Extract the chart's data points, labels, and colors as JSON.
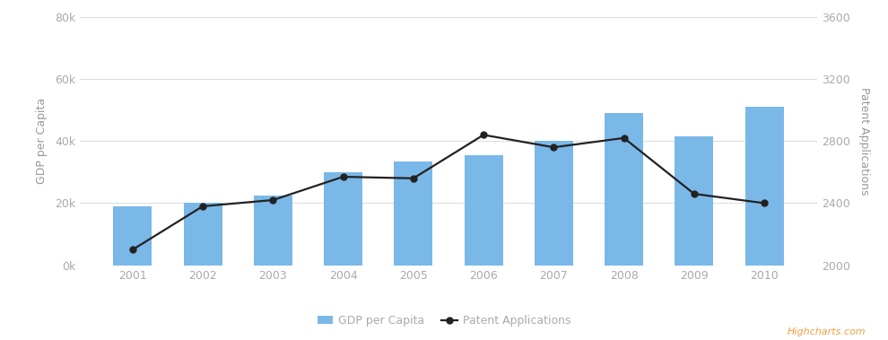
{
  "years": [
    2001,
    2002,
    2003,
    2004,
    2005,
    2006,
    2007,
    2008,
    2009,
    2010
  ],
  "gdp_per_capita": [
    19000,
    20000,
    22500,
    30000,
    33500,
    35500,
    40000,
    49000,
    41500,
    51000
  ],
  "patent_applications": [
    2100,
    2380,
    2420,
    2570,
    2560,
    2840,
    2760,
    2820,
    2460,
    2400
  ],
  "bar_color": "#7ab8e8",
  "line_color": "#222222",
  "marker_color": "#222222",
  "background_color": "#ffffff",
  "grid_color": "#dddddd",
  "left_ylabel": "GDP per Capita",
  "right_ylabel": "Patent Applications",
  "left_ylim": [
    0,
    80000
  ],
  "right_ylim": [
    2000,
    3600
  ],
  "left_yticks": [
    0,
    20000,
    40000,
    60000,
    80000
  ],
  "left_yticklabels": [
    "0k",
    "20k",
    "40k",
    "60k",
    "80k"
  ],
  "right_yticks": [
    2000,
    2400,
    2800,
    3200,
    3600
  ],
  "right_yticklabels": [
    "2000",
    "2400",
    "2800",
    "3200",
    "3600"
  ],
  "tick_color": "#aaaaaa",
  "axis_label_color": "#999999",
  "legend_bar_label": "GDP per Capita",
  "legend_line_label": "Patent Applications",
  "watermark": "Highcharts.com",
  "watermark_color": "#f0a040",
  "figsize": [
    9.9,
    3.79
  ],
  "dpi": 100
}
